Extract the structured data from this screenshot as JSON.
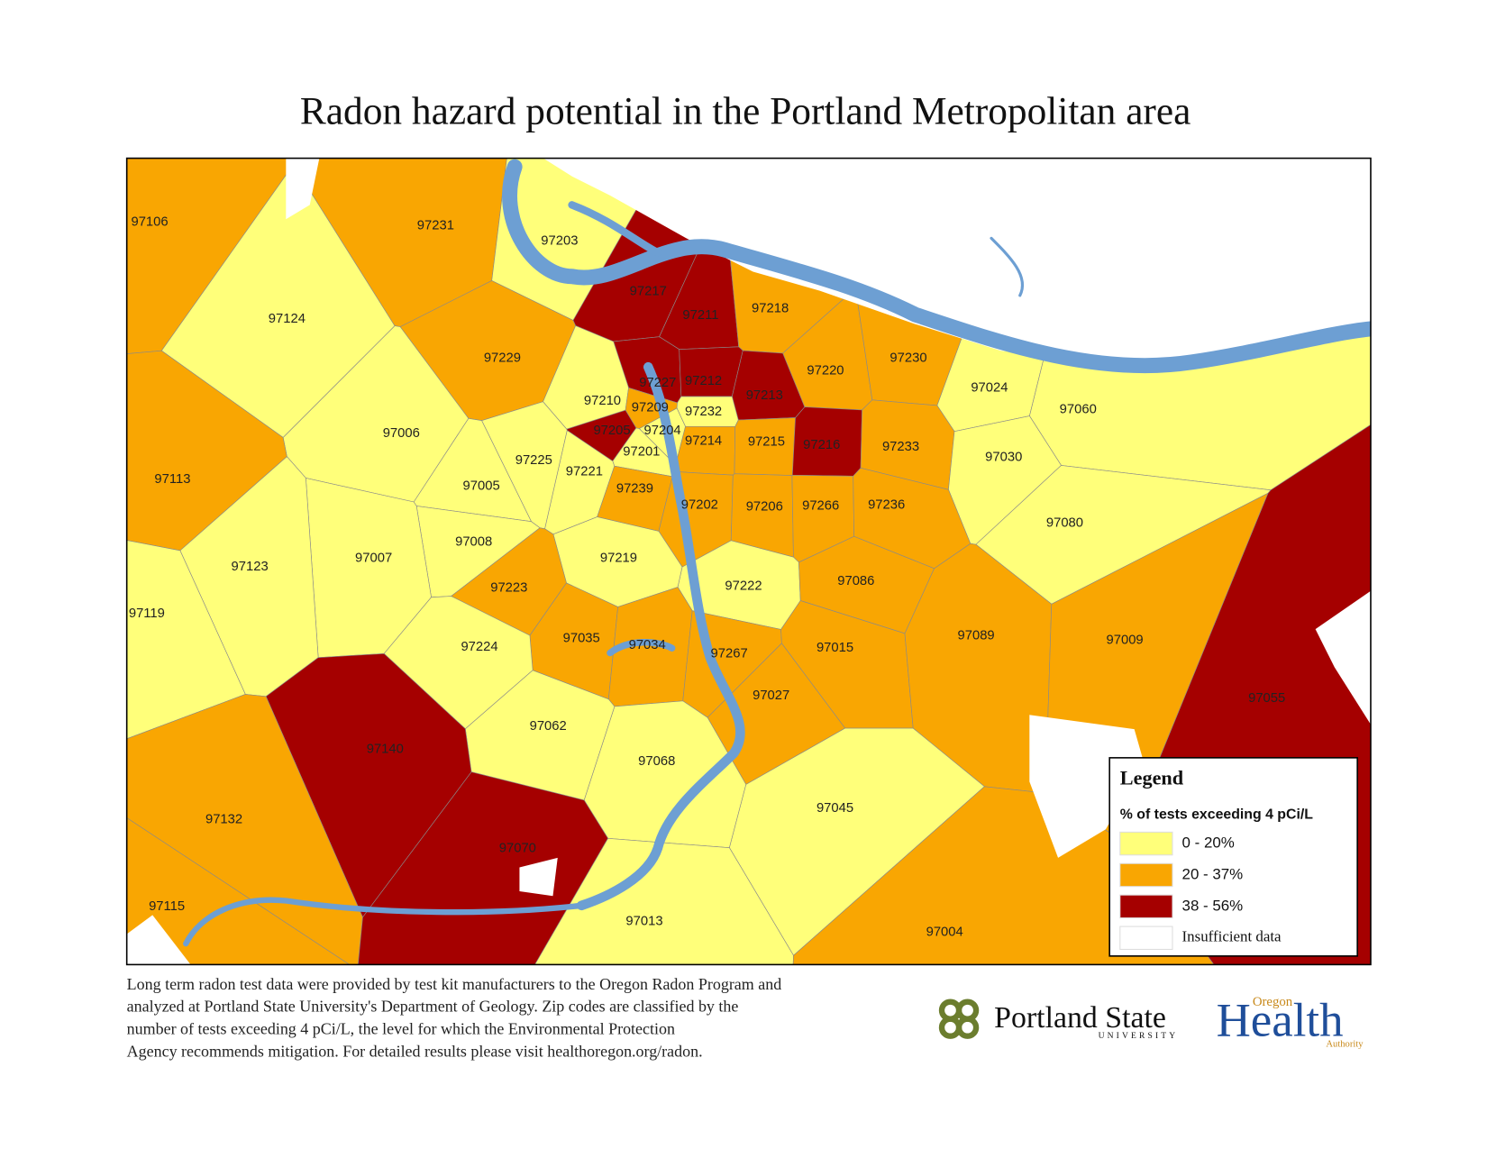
{
  "title": "Radon hazard potential in the Portland Metropolitan area",
  "zones": [
    {
      "label": "97106",
      "color": "#f9a602"
    },
    {
      "label": "97231",
      "color": "#f9a602"
    },
    {
      "label": "97203",
      "color": "#ffff7a"
    },
    {
      "label": "97217",
      "color": "#a50000"
    },
    {
      "label": "97211",
      "color": "#a50000"
    },
    {
      "label": "97218",
      "color": "#f9a602"
    },
    {
      "label": "97124",
      "color": "#ffff7a"
    },
    {
      "label": "97229",
      "color": "#f9a602"
    },
    {
      "label": "97220",
      "color": "#f9a602"
    },
    {
      "label": "97230",
      "color": "#f9a602"
    },
    {
      "label": "97227",
      "color": "#a50000"
    },
    {
      "label": "97212",
      "color": "#a50000"
    },
    {
      "label": "97213",
      "color": "#a50000"
    },
    {
      "label": "97024",
      "color": "#ffff7a"
    },
    {
      "label": "97060",
      "color": "#ffff7a"
    },
    {
      "label": "97210",
      "color": "#ffff7a"
    },
    {
      "label": "97209",
      "color": "#f9a602"
    },
    {
      "label": "97232",
      "color": "#ffff7a"
    },
    {
      "label": "97006",
      "color": "#ffff7a"
    },
    {
      "label": "97205",
      "color": "#a50000"
    },
    {
      "label": "97204",
      "color": "#ffff7a"
    },
    {
      "label": "97214",
      "color": "#f9a602"
    },
    {
      "label": "97215",
      "color": "#f9a602"
    },
    {
      "label": "97216",
      "color": "#a50000"
    },
    {
      "label": "97233",
      "color": "#f9a602"
    },
    {
      "label": "97201",
      "color": "#ffff7a"
    },
    {
      "label": "97225",
      "color": "#ffff7a"
    },
    {
      "label": "97221",
      "color": "#ffff7a"
    },
    {
      "label": "97030",
      "color": "#ffff7a"
    },
    {
      "label": "97113",
      "color": "#f9a602"
    },
    {
      "label": "97005",
      "color": "#ffff7a"
    },
    {
      "label": "97239",
      "color": "#f9a602"
    },
    {
      "label": "97202",
      "color": "#f9a602"
    },
    {
      "label": "97206",
      "color": "#f9a602"
    },
    {
      "label": "97266",
      "color": "#f9a602"
    },
    {
      "label": "97236",
      "color": "#f9a602"
    },
    {
      "label": "97080",
      "color": "#ffff7a"
    },
    {
      "label": "97008",
      "color": "#ffff7a"
    },
    {
      "label": "97007",
      "color": "#ffff7a"
    },
    {
      "label": "97219",
      "color": "#ffff7a"
    },
    {
      "label": "97123",
      "color": "#ffff7a"
    },
    {
      "label": "97223",
      "color": "#f9a602"
    },
    {
      "label": "97222",
      "color": "#ffff7a"
    },
    {
      "label": "97086",
      "color": "#f9a602"
    },
    {
      "label": "97119",
      "color": "#ffff7a"
    },
    {
      "label": "97035",
      "color": "#f9a602"
    },
    {
      "label": "97034",
      "color": "#f9a602"
    },
    {
      "label": "97267",
      "color": "#f9a602"
    },
    {
      "label": "97015",
      "color": "#f9a602"
    },
    {
      "label": "97089",
      "color": "#f9a602"
    },
    {
      "label": "97009",
      "color": "#f9a602"
    },
    {
      "label": "97224",
      "color": "#ffff7a"
    },
    {
      "label": "97055",
      "color": "#a50000"
    },
    {
      "label": "97027",
      "color": "#f9a602"
    },
    {
      "label": "97062",
      "color": "#ffff7a"
    },
    {
      "label": "97140",
      "color": "#a50000"
    },
    {
      "label": "97068",
      "color": "#ffff7a"
    },
    {
      "label": "97045",
      "color": "#ffff7a"
    },
    {
      "label": "97132",
      "color": "#f9a602"
    },
    {
      "label": "97070",
      "color": "#a50000"
    },
    {
      "label": "97115",
      "color": "#f9a602"
    },
    {
      "label": "97013",
      "color": "#ffff7a"
    },
    {
      "label": "97004",
      "color": "#f9a602"
    }
  ],
  "legend": {
    "title": "Legend",
    "subtitle": "% of tests exceeding 4 pCi/L",
    "items": [
      {
        "label": "0 -  20%",
        "color": "#ffff7a"
      },
      {
        "label": "20 - 37%",
        "color": "#f9a602"
      },
      {
        "label": "38 - 56%",
        "color": "#a50000"
      },
      {
        "label": "Insufficient data",
        "color": "#ffffff"
      }
    ]
  },
  "footnote": [
    "Long term radon test data were provided by test kit manufacturers to the Oregon Radon Program and",
    "analyzed at Portland State University's Department of Geology. Zip codes are classified by the",
    "number of tests exceeding 4 pCi/L, the level for which the Environmental Protection",
    "Agency recommends mitigation. For detailed results please visit healthoregon.org/radon."
  ],
  "logos": {
    "psu_name": "Portland State",
    "psu_sub": "UNIVERSITY",
    "oha_top": "Oregon",
    "oha_main": "Health",
    "oha_bottom": "Authority"
  }
}
